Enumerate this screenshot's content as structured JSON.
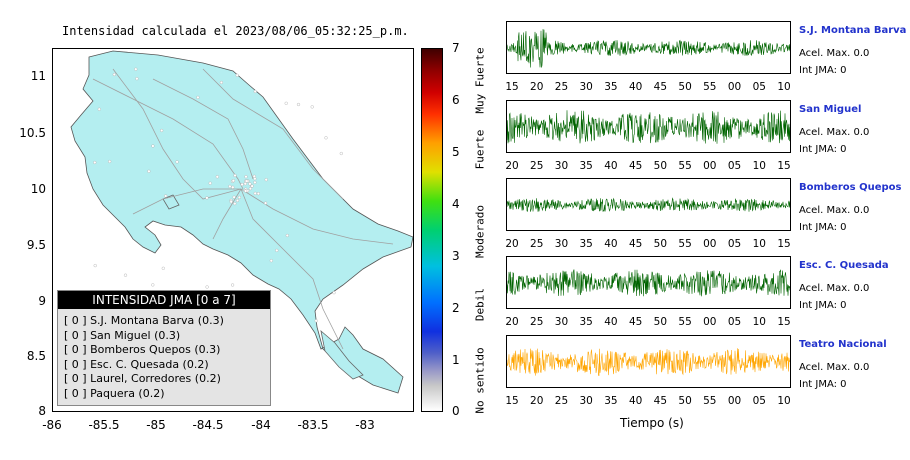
{
  "map": {
    "title": "Intensidad calculada el 2023/08/06_05:32:25_p.m.",
    "y_ticks": [
      "11",
      "10.5",
      "10",
      "9.5",
      "9",
      "8.5",
      "8"
    ],
    "x_ticks": [
      "-86",
      "-85.5",
      "-85",
      "-84.5",
      "-84",
      "-83.5",
      "-83"
    ],
    "land_color": "#b4eef0",
    "road_color": "#a0a0a0"
  },
  "legend": {
    "title": "INTENSIDAD JMA [0 a 7]",
    "entries": [
      "[ 0 ]  S.J. Montana Barva (0.3)",
      "[ 0 ]  San Miguel (0.3)",
      "[ 0 ]  Bomberos Quepos (0.3)",
      "[ 0 ]  Esc. C. Quesada (0.2)",
      "[ 0 ]  Laurel, Corredores (0.2)",
      "[ 0 ]  Paquera (0.2)"
    ]
  },
  "colorbar": {
    "ticks": [
      "7",
      "6",
      "5",
      "4",
      "3",
      "2",
      "1",
      "0"
    ],
    "categories": [
      "Muy Fuerte",
      "Fuerte",
      "Moderado",
      "Debil",
      "No sentido"
    ]
  },
  "traces": [
    {
      "station": "S.J. Montana Barva",
      "acel": "Acel. Max. 0.0",
      "int": "Int JMA: 0",
      "ticks": [
        "15",
        "20",
        "25",
        "30",
        "35",
        "40",
        "45",
        "50",
        "55",
        "00",
        "05",
        "10"
      ],
      "color": "#006400",
      "amp": 0.35
    },
    {
      "station": "San Miguel",
      "acel": "Acel. Max. 0.0",
      "int": "Int JMA: 0",
      "ticks": [
        "20",
        "25",
        "30",
        "35",
        "40",
        "45",
        "50",
        "55",
        "00",
        "05",
        "10",
        "15"
      ],
      "color": "#006400",
      "amp": 0.75
    },
    {
      "station": "Bomberos Quepos",
      "acel": "Acel. Max. 0.0",
      "int": "Int JMA: 0",
      "ticks": [
        "20",
        "25",
        "30",
        "35",
        "40",
        "45",
        "50",
        "55",
        "00",
        "05",
        "10",
        "15"
      ],
      "color": "#006400",
      "amp": 0.3
    },
    {
      "station": "Esc. C. Quesada",
      "acel": "Acel. Max. 0.0",
      "int": "Int JMA: 0",
      "ticks": [
        "20",
        "25",
        "30",
        "35",
        "40",
        "45",
        "50",
        "55",
        "00",
        "05",
        "10",
        "15"
      ],
      "color": "#006400",
      "amp": 0.6
    },
    {
      "station": "Teatro Nacional",
      "acel": "Acel. Max. 0.0",
      "int": "Int JMA: 0",
      "ticks": [
        "15",
        "20",
        "25",
        "30",
        "35",
        "40",
        "45",
        "50",
        "55",
        "00",
        "05",
        "10"
      ],
      "color": "#ffa500",
      "amp": 0.6
    }
  ],
  "xlabel": "Tiempo (s)",
  "chart_data": {
    "type": "line",
    "title": "Intensidad calculada el 2023/08/06_05:32:25_p.m.",
    "xlabel": "Tiempo (s)",
    "colorbar_range": [
      0,
      7
    ],
    "map_xlim": [
      -86,
      -82.5
    ],
    "map_ylim": [
      8,
      11.3
    ],
    "series": [
      {
        "name": "S.J. Montana Barva",
        "acel_max": 0.0,
        "int_jma": 0,
        "intensidad": 0.3
      },
      {
        "name": "San Miguel",
        "acel_max": 0.0,
        "int_jma": 0,
        "intensidad": 0.3
      },
      {
        "name": "Bomberos Quepos",
        "acel_max": 0.0,
        "int_jma": 0,
        "intensidad": 0.3
      },
      {
        "name": "Esc. C. Quesada",
        "acel_max": 0.0,
        "int_jma": 0,
        "intensidad": 0.2
      },
      {
        "name": "Teatro Nacional",
        "acel_max": 0.0,
        "int_jma": 0
      },
      {
        "name": "Laurel, Corredores",
        "intensidad": 0.2
      },
      {
        "name": "Paquera",
        "intensidad": 0.2
      }
    ]
  }
}
